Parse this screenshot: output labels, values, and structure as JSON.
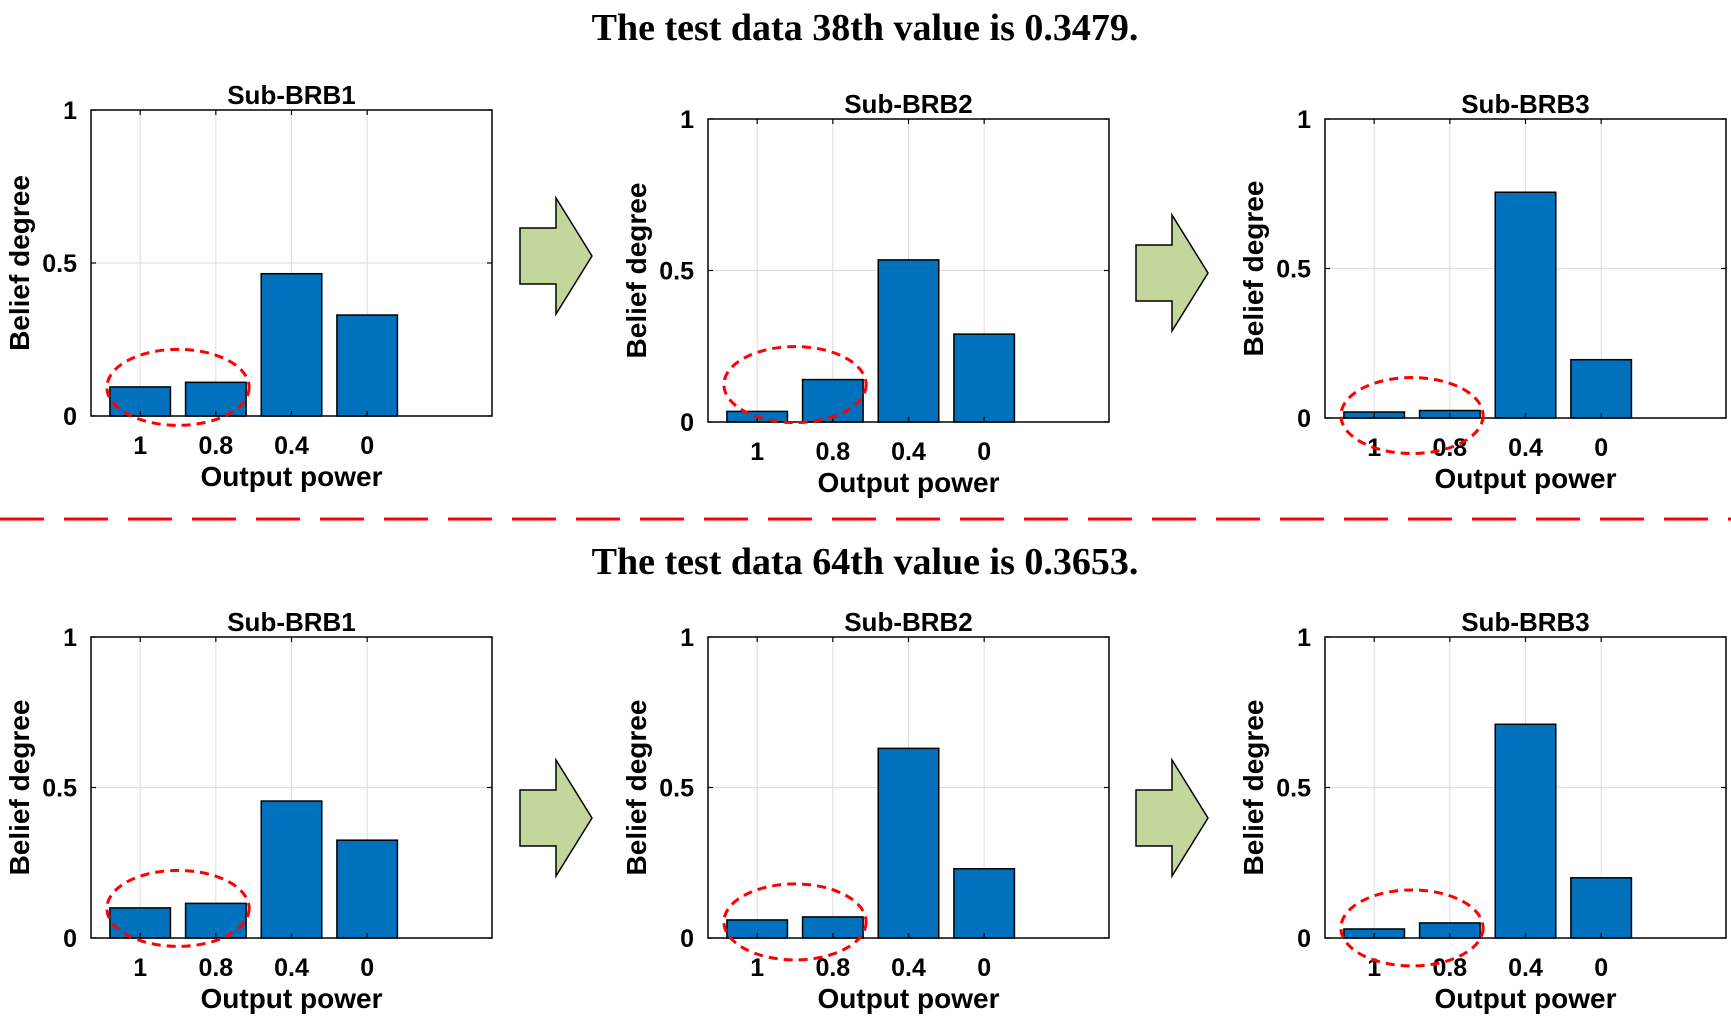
{
  "colors": {
    "bar_fill": "#0072BD",
    "bar_stroke": "#000000",
    "grid": "#dcdcdc",
    "ellipse": "#ff0000",
    "divider": "#ff0000",
    "arrow_fill": "#c3d69b",
    "arrow_stroke": "#000000"
  },
  "rows": [
    {
      "heading": "The test data 38th value is 0.3479."
    },
    {
      "heading": "The test data 64th value is 0.3653."
    }
  ],
  "chart_data": [
    {
      "type": "bar",
      "title": "Sub-BRB1",
      "xlabel": "Output power",
      "ylabel": "Belief degree",
      "categories": [
        "1",
        "0.8",
        "0.4",
        "0"
      ],
      "values": [
        0.095,
        0.11,
        0.465,
        0.33
      ],
      "ylim": [
        0,
        1
      ],
      "yticks": [
        "0",
        "0.5",
        "1"
      ],
      "grid": true
    },
    {
      "type": "bar",
      "title": "Sub-BRB2",
      "xlabel": "Output power",
      "ylabel": "Belief degree",
      "categories": [
        "1",
        "0.8",
        "0.4",
        "0"
      ],
      "values": [
        0.035,
        0.14,
        0.535,
        0.29
      ],
      "ylim": [
        0,
        1
      ],
      "yticks": [
        "0",
        "0.5",
        "1"
      ],
      "grid": true
    },
    {
      "type": "bar",
      "title": "Sub-BRB3",
      "xlabel": "Output power",
      "ylabel": "Belief degree",
      "categories": [
        "1",
        "0.8",
        "0.4",
        "0"
      ],
      "values": [
        0.02,
        0.025,
        0.755,
        0.195
      ],
      "ylim": [
        0,
        1
      ],
      "yticks": [
        "0",
        "0.5",
        "1"
      ],
      "grid": true
    },
    {
      "type": "bar",
      "title": "Sub-BRB1",
      "xlabel": "Output power",
      "ylabel": "Belief degree",
      "categories": [
        "1",
        "0.8",
        "0.4",
        "0"
      ],
      "values": [
        0.1,
        0.115,
        0.455,
        0.325
      ],
      "ylim": [
        0,
        1
      ],
      "yticks": [
        "0",
        "0.5",
        "1"
      ],
      "grid": true
    },
    {
      "type": "bar",
      "title": "Sub-BRB2",
      "xlabel": "Output power",
      "ylabel": "Belief degree",
      "categories": [
        "1",
        "0.8",
        "0.4",
        "0"
      ],
      "values": [
        0.06,
        0.07,
        0.63,
        0.23
      ],
      "ylim": [
        0,
        1
      ],
      "yticks": [
        "0",
        "0.5",
        "1"
      ],
      "grid": true
    },
    {
      "type": "bar",
      "title": "Sub-BRB3",
      "xlabel": "Output power",
      "ylabel": "Belief degree",
      "categories": [
        "1",
        "0.8",
        "0.4",
        "0"
      ],
      "values": [
        0.03,
        0.05,
        0.71,
        0.2
      ],
      "ylim": [
        0,
        1
      ],
      "yticks": [
        "0",
        "0.5",
        "1"
      ],
      "grid": true
    }
  ]
}
